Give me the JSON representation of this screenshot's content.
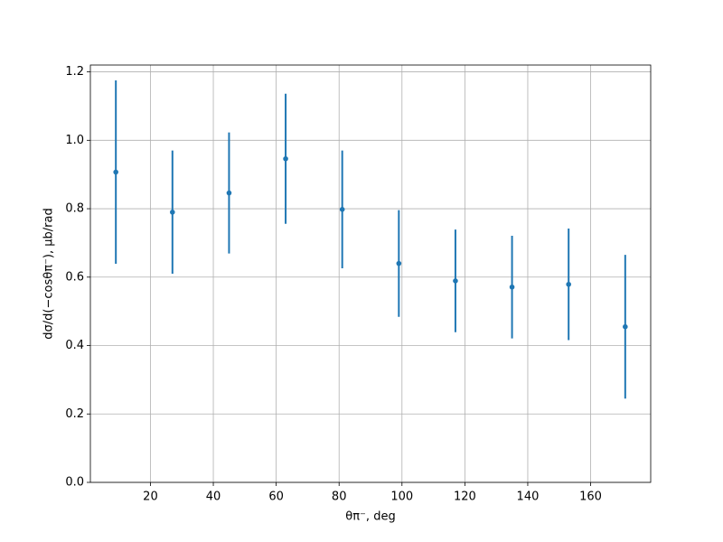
{
  "chart_data": {
    "type": "errorbar",
    "xlabel": "θπ⁻, deg",
    "ylabel": "dσ/d(−cosθπ⁻), μb/rad",
    "x": [
      9,
      27,
      45,
      63,
      81,
      99,
      117,
      135,
      153,
      171
    ],
    "values": [
      0.907,
      0.79,
      0.846,
      0.946,
      0.798,
      0.64,
      0.589,
      0.571,
      0.579,
      0.455
    ],
    "errors": [
      0.268,
      0.18,
      0.177,
      0.19,
      0.172,
      0.156,
      0.15,
      0.15,
      0.163,
      0.21
    ],
    "color": "#1f77b4",
    "xlim": [
      0.9,
      179.1
    ],
    "ylim": [
      0,
      1.22
    ],
    "xticks": [
      20,
      40,
      60,
      80,
      100,
      120,
      140,
      160
    ],
    "yticks": [
      {
        "value": 0,
        "label": "0.0"
      },
      0.2,
      0.4,
      0.6,
      0.8,
      {
        "value": 1,
        "label": "1.0"
      },
      1.2
    ],
    "grid": true
  }
}
